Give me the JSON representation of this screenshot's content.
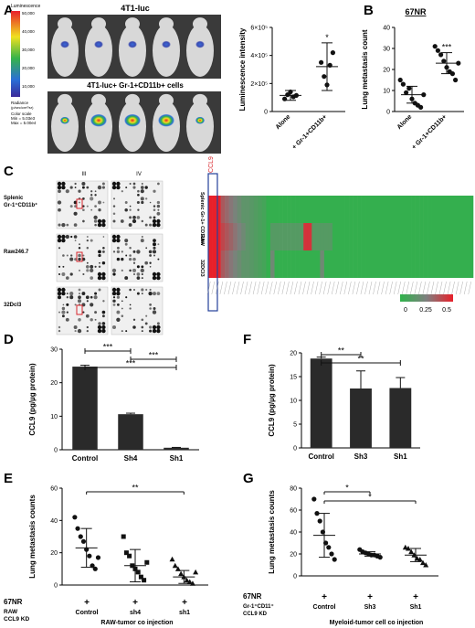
{
  "panels": {
    "A": {
      "letter": "A",
      "image_title_top": "4T1-luc",
      "image_title_bottom": "4T1-luc+ Gr-1+CD11b+ cells",
      "colorbar": {
        "title": "Luminescence",
        "ticks": [
          "50,000",
          "40,000",
          "30,000",
          "20,000",
          "10,000"
        ],
        "radiance_label": "Radiance",
        "radiance_units": "(p/sec/cm²/sr)",
        "color_scale": "Color scale",
        "min": "Min = 5.03e3",
        "max": "Max = 5.00e4"
      }
    },
    "B": {
      "letter": "B",
      "title": "67NR"
    },
    "C": {
      "letter": "C",
      "blot_cols": [
        "III",
        "IV"
      ],
      "blot_rows": [
        "Splenic Gr-1+CD11b+",
        "Raw246.7",
        "32Dcl3"
      ],
      "heatmap_label": "CCL9",
      "heatmap_rows": [
        "Splenic Gr-1+ CD11b+",
        "RAW",
        "32DCl3"
      ],
      "legend_ticks": [
        "0",
        "0.25",
        "0.5"
      ]
    },
    "D": {
      "letter": "D"
    },
    "E": {
      "letter": "E",
      "cond_rows": [
        {
          "label": "67NR",
          "values": [
            "+",
            "+",
            "+"
          ]
        },
        {
          "label": "RAW CCL9 KD",
          "values": [
            "Control",
            "sh4",
            "sh1"
          ]
        }
      ],
      "footer": "RAW-tumor co injection"
    },
    "F": {
      "letter": "F"
    },
    "G": {
      "letter": "G",
      "cond_rows": [
        {
          "label": "67NR",
          "values": [
            "+",
            "+",
            "+"
          ]
        },
        {
          "label": "Gr-1+CD11+ CCL9 KD",
          "values": [
            "Control",
            "Sh3",
            "Sh1"
          ]
        }
      ],
      "footer": "Myeloid-tumor cell co injection"
    }
  },
  "chart_data": [
    {
      "id": "A",
      "type": "scatter",
      "ylabel": "Luminescence intensity",
      "categories": [
        "Alone",
        "+ Gr-1+CD11b+"
      ],
      "yticks": [
        "0",
        "2×10⁵",
        "4×10⁵",
        "6×10⁵"
      ],
      "ylim": [
        0,
        600000
      ],
      "series": [
        {
          "values": [
            [
              90000,
              120000,
              140000,
              105000,
              115000
            ],
            [
              350000,
              250000,
              190000,
              330000,
              420000
            ]
          ]
        }
      ],
      "mean": [
        115000,
        320000
      ],
      "err": [
        35000,
        170000
      ],
      "significance": [
        "",
        "*"
      ]
    },
    {
      "id": "B",
      "type": "scatter",
      "ylabel": "Lung metastasis count",
      "categories": [
        "Alone",
        "+ Gr-1+CD11b+"
      ],
      "yticks": [
        "0",
        "10",
        "20",
        "30",
        "40"
      ],
      "ylim": [
        0,
        40
      ],
      "series": [
        {
          "values": [
            [
              15,
              13,
              9,
              11,
              6,
              4,
              3,
              2,
              8
            ],
            [
              31,
              29,
              27,
              24,
              21,
              19,
              18,
              15,
              23
            ]
          ]
        }
      ],
      "mean": [
        8,
        23
      ],
      "err": [
        4,
        5
      ],
      "significance": [
        "",
        "***"
      ]
    },
    {
      "id": "C",
      "type": "heatmap",
      "rows": [
        "Splenic Gr-1+ CD11b+",
        "RAW",
        "32DCl3"
      ],
      "scale": [
        0,
        0.5
      ]
    },
    {
      "id": "D",
      "type": "bar",
      "ylabel": "CCL9 (pg/µg protein)",
      "categories": [
        "Control",
        "Sh4",
        "Sh1"
      ],
      "values": [
        24.8,
        10.6,
        0.6
      ],
      "errors": [
        0.4,
        0.3,
        0.1
      ],
      "yticks": [
        "0",
        "10",
        "20",
        "30"
      ],
      "ylim": [
        0,
        30
      ],
      "comparisons": [
        {
          "from": 0,
          "to": 1,
          "label": "***"
        },
        {
          "from": 1,
          "to": 2,
          "label": "***"
        },
        {
          "from": 0,
          "to": 2,
          "label": "***"
        }
      ]
    },
    {
      "id": "E",
      "type": "scatter",
      "ylabel": "Lung metastasis counts",
      "categories": [
        "Control",
        "sh4",
        "sh1"
      ],
      "yticks": [
        "0",
        "20",
        "40",
        "60"
      ],
      "ylim": [
        0,
        60
      ],
      "series": [
        {
          "values": [
            [
              42,
              35,
              30,
              27,
              22,
              18,
              12,
              10,
              17
            ],
            [
              30,
              20,
              18,
              12,
              10,
              8,
              5,
              3,
              14
            ],
            [
              16,
              12,
              10,
              7,
              5,
              3,
              2,
              1,
              8
            ]
          ]
        }
      ],
      "mean": [
        23,
        12,
        5
      ],
      "err": [
        12,
        10,
        4
      ],
      "comparisons": [
        {
          "from": 0,
          "to": 2,
          "label": "**"
        }
      ]
    },
    {
      "id": "F",
      "type": "bar",
      "ylabel": "CCL9 (pg/µg protein)",
      "categories": [
        "Control",
        "Sh3",
        "Sh1"
      ],
      "values": [
        18.8,
        12.5,
        12.6
      ],
      "errors": [
        0.3,
        3.7,
        2.2
      ],
      "yticks": [
        "0",
        "5",
        "10",
        "15",
        "20"
      ],
      "ylim": [
        0,
        20
      ],
      "comparisons": [
        {
          "from": 0,
          "to": 1,
          "label": "**"
        },
        {
          "from": 0,
          "to": 2,
          "label": "**"
        }
      ]
    },
    {
      "id": "G",
      "type": "scatter",
      "ylabel": "Lung metastasis counts",
      "categories": [
        "Control",
        "Sh3",
        "Sh1"
      ],
      "yticks": [
        "0",
        "20",
        "40",
        "60",
        "80"
      ],
      "ylim": [
        0,
        80
      ],
      "series": [
        {
          "values": [
            [
              70,
              57,
              50,
              40,
              30,
              26,
              20,
              15
            ],
            [
              24,
              22,
              21,
              20,
              19,
              19,
              18,
              17
            ],
            [
              26,
              25,
              22,
              19,
              16,
              15,
              12,
              10
            ]
          ]
        }
      ],
      "mean": [
        37,
        20,
        19
      ],
      "err": [
        20,
        2,
        6
      ],
      "comparisons": [
        {
          "from": 0,
          "to": 1,
          "label": "*"
        },
        {
          "from": 0,
          "to": 2,
          "label": "*"
        }
      ]
    }
  ],
  "colors": {
    "heat_low": "#2eb34a",
    "heat_mid": "#7f7f7f",
    "heat_high": "#e8202a",
    "bar": "#2a2a2a",
    "ccl9_label": "#d9262c",
    "ccl9_box": "#23409a"
  }
}
